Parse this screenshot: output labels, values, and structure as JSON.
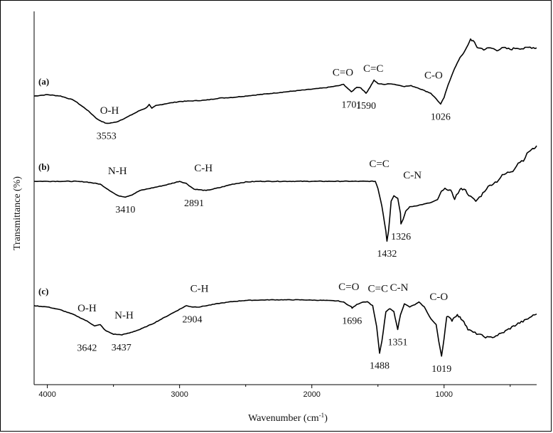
{
  "chart_data": {
    "type": "line",
    "title": "",
    "xlabel": "Wavenumber (cm⁻¹)",
    "xlabel_main": "Wavenumber (cm",
    "xlabel_sup": "-1",
    "xlabel_end": ")",
    "ylabel": "Transmittance (%)",
    "xlim": [
      4100,
      300
    ],
    "x_reversed": true,
    "x_ticks": [
      4000,
      3000,
      2000,
      1000
    ],
    "x_tick_labels": [
      "4000",
      "3000",
      "2000",
      "1000"
    ],
    "y_ticks_shown": false,
    "grid": false,
    "legend": "none",
    "series": [
      {
        "name": "(a)",
        "label": "(a)",
        "color": "#000000",
        "points": [
          [
            4100,
            0.62
          ],
          [
            4000,
            0.64
          ],
          [
            3900,
            0.62
          ],
          [
            3800,
            0.56
          ],
          [
            3700,
            0.42
          ],
          [
            3620,
            0.28
          ],
          [
            3553,
            0.22
          ],
          [
            3480,
            0.24
          ],
          [
            3400,
            0.31
          ],
          [
            3300,
            0.41
          ],
          [
            3250,
            0.45
          ],
          [
            3230,
            0.5
          ],
          [
            3210,
            0.44
          ],
          [
            3180,
            0.48
          ],
          [
            3100,
            0.51
          ],
          [
            3000,
            0.54
          ],
          [
            2900,
            0.55
          ],
          [
            2800,
            0.56
          ],
          [
            2700,
            0.59
          ],
          [
            2600,
            0.6
          ],
          [
            2500,
            0.62
          ],
          [
            2400,
            0.64
          ],
          [
            2300,
            0.66
          ],
          [
            2200,
            0.68
          ],
          [
            2100,
            0.7
          ],
          [
            2000,
            0.72
          ],
          [
            1900,
            0.74
          ],
          [
            1800,
            0.77
          ],
          [
            1760,
            0.79
          ],
          [
            1701,
            0.68
          ],
          [
            1660,
            0.75
          ],
          [
            1630,
            0.74
          ],
          [
            1590,
            0.66
          ],
          [
            1560,
            0.75
          ],
          [
            1530,
            0.85
          ],
          [
            1500,
            0.8
          ],
          [
            1450,
            0.79
          ],
          [
            1400,
            0.8
          ],
          [
            1350,
            0.78
          ],
          [
            1300,
            0.76
          ],
          [
            1250,
            0.77
          ],
          [
            1200,
            0.74
          ],
          [
            1150,
            0.7
          ],
          [
            1100,
            0.66
          ],
          [
            1060,
            0.58
          ],
          [
            1026,
            0.5
          ],
          [
            1000,
            0.6
          ],
          [
            970,
            0.78
          ],
          [
            930,
            0.98
          ],
          [
            900,
            1.1
          ],
          [
            880,
            1.18
          ],
          [
            850,
            1.25
          ],
          [
            820,
            1.36
          ],
          [
            800,
            1.45
          ],
          [
            780,
            1.42
          ],
          [
            750,
            1.33
          ],
          [
            700,
            1.3
          ],
          [
            650,
            1.32
          ],
          [
            600,
            1.29
          ],
          [
            550,
            1.32
          ],
          [
            500,
            1.3
          ],
          [
            450,
            1.32
          ],
          [
            400,
            1.31
          ],
          [
            350,
            1.33
          ],
          [
            300,
            1.32
          ]
        ],
        "annotations": [
          {
            "text": "O-H",
            "x": 3530,
            "y": 0.24,
            "kind": "group"
          },
          {
            "text": "3553",
            "x": 3553,
            "y": 0.22,
            "kind": "peak"
          },
          {
            "text": "C=O",
            "x": 1765,
            "y": 0.79,
            "kind": "group"
          },
          {
            "text": "1701",
            "x": 1701,
            "y": 0.68,
            "kind": "peak"
          },
          {
            "text": "C=C",
            "x": 1535,
            "y": 0.85,
            "kind": "group"
          },
          {
            "text": "1590",
            "x": 1590,
            "y": 0.66,
            "kind": "peak"
          },
          {
            "text": "C-O",
            "x": 1080,
            "y": 0.75,
            "kind": "group"
          },
          {
            "text": "1026",
            "x": 1026,
            "y": 0.5,
            "kind": "peak"
          }
        ]
      },
      {
        "name": "(b)",
        "label": "(b)",
        "color": "#000000",
        "points": [
          [
            4100,
            1.0
          ],
          [
            4000,
            1.0
          ],
          [
            3900,
            1.0
          ],
          [
            3800,
            1.0
          ],
          [
            3700,
            0.99
          ],
          [
            3600,
            0.96
          ],
          [
            3520,
            0.86
          ],
          [
            3470,
            0.8
          ],
          [
            3410,
            0.78
          ],
          [
            3360,
            0.81
          ],
          [
            3300,
            0.87
          ],
          [
            3200,
            0.91
          ],
          [
            3100,
            0.95
          ],
          [
            3020,
            0.99
          ],
          [
            3000,
            1.0
          ],
          [
            2950,
            0.97
          ],
          [
            2891,
            0.89
          ],
          [
            2800,
            0.87
          ],
          [
            2700,
            0.91
          ],
          [
            2600,
            0.96
          ],
          [
            2500,
            0.99
          ],
          [
            2400,
            1.0
          ],
          [
            2200,
            1.0
          ],
          [
            2000,
            1.0
          ],
          [
            1800,
            1.0
          ],
          [
            1600,
            1.0
          ],
          [
            1520,
            1.0
          ],
          [
            1500,
            0.9
          ],
          [
            1470,
            0.65
          ],
          [
            1440,
            0.3
          ],
          [
            1432,
            0.16
          ],
          [
            1420,
            0.3
          ],
          [
            1400,
            0.72
          ],
          [
            1380,
            0.8
          ],
          [
            1350,
            0.76
          ],
          [
            1330,
            0.55
          ],
          [
            1326,
            0.4
          ],
          [
            1310,
            0.46
          ],
          [
            1290,
            0.58
          ],
          [
            1260,
            0.64
          ],
          [
            1200,
            0.66
          ],
          [
            1150,
            0.68
          ],
          [
            1100,
            0.7
          ],
          [
            1050,
            0.74
          ],
          [
            1020,
            0.86
          ],
          [
            980,
            0.9
          ],
          [
            950,
            0.86
          ],
          [
            920,
            0.76
          ],
          [
            880,
            0.88
          ],
          [
            850,
            0.9
          ],
          [
            800,
            0.78
          ],
          [
            760,
            0.72
          ],
          [
            720,
            0.8
          ],
          [
            680,
            0.9
          ],
          [
            640,
            0.96
          ],
          [
            600,
            1.0
          ],
          [
            560,
            1.08
          ],
          [
            520,
            1.12
          ],
          [
            480,
            1.15
          ],
          [
            440,
            1.26
          ],
          [
            400,
            1.3
          ],
          [
            360,
            1.42
          ],
          [
            330,
            1.45
          ],
          [
            300,
            1.5
          ]
        ],
        "annotations": [
          {
            "text": "N-H",
            "x": 3470,
            "y": 0.98,
            "kind": "group"
          },
          {
            "text": "3410",
            "x": 3410,
            "y": 0.78,
            "kind": "peak"
          },
          {
            "text": "C-H",
            "x": 2820,
            "y": 1.02,
            "kind": "group"
          },
          {
            "text": "2891",
            "x": 2891,
            "y": 0.87,
            "kind": "peak"
          },
          {
            "text": "C=C",
            "x": 1490,
            "y": 1.08,
            "kind": "group"
          },
          {
            "text": "1432",
            "x": 1432,
            "y": 0.16,
            "kind": "peak"
          },
          {
            "text": "C-N",
            "x": 1240,
            "y": 0.92,
            "kind": "group"
          },
          {
            "text": "1326",
            "x": 1326,
            "y": 0.4,
            "kind": "peak"
          }
        ]
      },
      {
        "name": "(c)",
        "label": "(c)",
        "color": "#000000",
        "points": [
          [
            4100,
            0.9
          ],
          [
            4000,
            0.88
          ],
          [
            3900,
            0.83
          ],
          [
            3800,
            0.75
          ],
          [
            3700,
            0.64
          ],
          [
            3642,
            0.56
          ],
          [
            3600,
            0.58
          ],
          [
            3560,
            0.48
          ],
          [
            3500,
            0.42
          ],
          [
            3437,
            0.41
          ],
          [
            3380,
            0.44
          ],
          [
            3300,
            0.5
          ],
          [
            3200,
            0.6
          ],
          [
            3100,
            0.72
          ],
          [
            3000,
            0.84
          ],
          [
            2950,
            0.9
          ],
          [
            2904,
            0.88
          ],
          [
            2850,
            0.88
          ],
          [
            2800,
            0.9
          ],
          [
            2700,
            0.94
          ],
          [
            2600,
            0.97
          ],
          [
            2500,
            0.99
          ],
          [
            2300,
            1.0
          ],
          [
            2100,
            1.0
          ],
          [
            1900,
            0.99
          ],
          [
            1800,
            0.98
          ],
          [
            1760,
            0.96
          ],
          [
            1700,
            0.88
          ],
          [
            1696,
            0.86
          ],
          [
            1660,
            0.92
          ],
          [
            1620,
            0.96
          ],
          [
            1580,
            0.97
          ],
          [
            1540,
            0.9
          ],
          [
            1510,
            0.55
          ],
          [
            1488,
            0.1
          ],
          [
            1470,
            0.3
          ],
          [
            1440,
            0.8
          ],
          [
            1410,
            0.85
          ],
          [
            1380,
            0.8
          ],
          [
            1360,
            0.6
          ],
          [
            1351,
            0.5
          ],
          [
            1330,
            0.75
          ],
          [
            1300,
            0.93
          ],
          [
            1260,
            0.88
          ],
          [
            1220,
            0.92
          ],
          [
            1190,
            0.96
          ],
          [
            1150,
            0.88
          ],
          [
            1100,
            0.68
          ],
          [
            1060,
            0.58
          ],
          [
            1040,
            0.3
          ],
          [
            1019,
            0.05
          ],
          [
            1000,
            0.35
          ],
          [
            980,
            0.7
          ],
          [
            960,
            0.72
          ],
          [
            940,
            0.65
          ],
          [
            920,
            0.72
          ],
          [
            900,
            0.74
          ],
          [
            880,
            0.7
          ],
          [
            850,
            0.64
          ],
          [
            820,
            0.5
          ],
          [
            780,
            0.45
          ],
          [
            740,
            0.42
          ],
          [
            700,
            0.38
          ],
          [
            660,
            0.36
          ],
          [
            620,
            0.38
          ],
          [
            560,
            0.44
          ],
          [
            500,
            0.52
          ],
          [
            440,
            0.6
          ],
          [
            380,
            0.66
          ],
          [
            340,
            0.72
          ],
          [
            300,
            0.76
          ]
        ],
        "annotations": [
          {
            "text": "O-H",
            "x": 3700,
            "y": 0.66,
            "kind": "group"
          },
          {
            "text": "3642",
            "x": 3700,
            "y": 0.4,
            "kind": "peak"
          },
          {
            "text": "N-H",
            "x": 3420,
            "y": 0.54,
            "kind": "group"
          },
          {
            "text": "3437",
            "x": 3440,
            "y": 0.41,
            "kind": "peak"
          },
          {
            "text": "C-H",
            "x": 2850,
            "y": 0.99,
            "kind": "group"
          },
          {
            "text": "2904",
            "x": 2904,
            "y": 0.88,
            "kind": "peak"
          },
          {
            "text": "C=O",
            "x": 1720,
            "y": 1.02,
            "kind": "group"
          },
          {
            "text": "1696",
            "x": 1696,
            "y": 0.86,
            "kind": "peak"
          },
          {
            "text": "C=C",
            "x": 1500,
            "y": 0.99,
            "kind": "group"
          },
          {
            "text": "1488",
            "x": 1488,
            "y": 0.1,
            "kind": "peak"
          },
          {
            "text": "C-N",
            "x": 1340,
            "y": 1.01,
            "kind": "group"
          },
          {
            "text": "1351",
            "x": 1351,
            "y": 0.5,
            "kind": "peak"
          },
          {
            "text": "C-O",
            "x": 1040,
            "y": 0.85,
            "kind": "group"
          },
          {
            "text": "1019",
            "x": 1019,
            "y": 0.05,
            "kind": "peak"
          }
        ]
      }
    ]
  }
}
